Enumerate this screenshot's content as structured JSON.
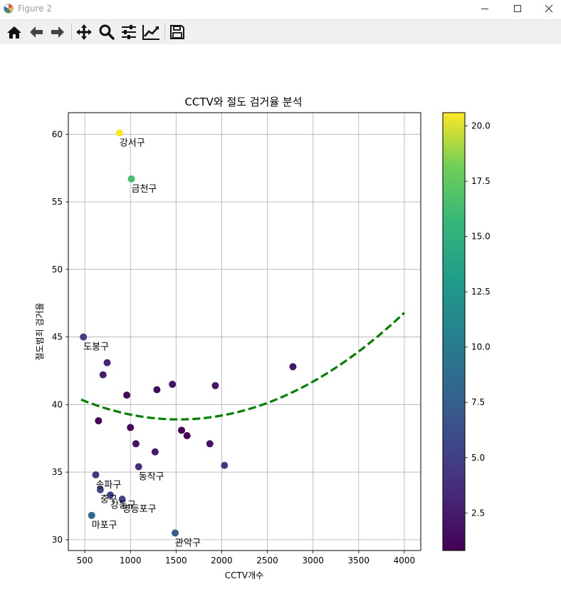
{
  "window": {
    "title": "Figure 2"
  },
  "toolbar": {
    "buttons": [
      "home-icon",
      "back-icon",
      "forward-icon",
      "pan-icon",
      "zoom-icon",
      "subplots-icon",
      "customize-icon",
      "save-icon"
    ]
  },
  "chart_data": {
    "type": "scatter",
    "title": "CCTV와 절도 검거율 분석",
    "xlabel": "CCTV개수",
    "ylabel": "절도범죄 검거율",
    "xlim": [
      320,
      4180
    ],
    "ylim": [
      29.2,
      61.6
    ],
    "xticks": [
      500,
      1000,
      1500,
      2000,
      2500,
      3000,
      3500,
      4000
    ],
    "yticks": [
      30,
      35,
      40,
      45,
      50,
      55,
      60
    ],
    "grid": true,
    "colormap": "viridis",
    "colorbar": {
      "min": 0.8,
      "max": 20.6,
      "ticks": [
        "2.5",
        "5.0",
        "7.5",
        "10.0",
        "12.5",
        "15.0",
        "17.5",
        "20.0"
      ]
    },
    "points": [
      {
        "x": 880,
        "y": 60.1,
        "c": 20.6,
        "label": "강서구"
      },
      {
        "x": 1010,
        "y": 56.7,
        "c": 16.6,
        "label": "금천구"
      },
      {
        "x": 485,
        "y": 45.0,
        "c": 5.0,
        "label": "도봉구"
      },
      {
        "x": 745,
        "y": 43.1,
        "c": 3.0,
        "label": ""
      },
      {
        "x": 700,
        "y": 42.2,
        "c": 2.5,
        "label": ""
      },
      {
        "x": 960,
        "y": 40.7,
        "c": 1.2,
        "label": ""
      },
      {
        "x": 650,
        "y": 38.8,
        "c": 1.0,
        "label": ""
      },
      {
        "x": 1000,
        "y": 38.3,
        "c": 1.2,
        "label": ""
      },
      {
        "x": 1290,
        "y": 41.1,
        "c": 1.5,
        "label": ""
      },
      {
        "x": 1460,
        "y": 41.5,
        "c": 2.0,
        "label": ""
      },
      {
        "x": 1930,
        "y": 41.4,
        "c": 2.2,
        "label": ""
      },
      {
        "x": 2780,
        "y": 42.8,
        "c": 2.2,
        "label": ""
      },
      {
        "x": 1560,
        "y": 38.1,
        "c": 0.9,
        "label": ""
      },
      {
        "x": 1620,
        "y": 37.7,
        "c": 1.0,
        "label": ""
      },
      {
        "x": 1060,
        "y": 37.1,
        "c": 1.8,
        "label": ""
      },
      {
        "x": 1870,
        "y": 37.1,
        "c": 1.8,
        "label": ""
      },
      {
        "x": 1270,
        "y": 36.5,
        "c": 2.3,
        "label": ""
      },
      {
        "x": 1090,
        "y": 35.4,
        "c": 3.8,
        "label": "동작구"
      },
      {
        "x": 2030,
        "y": 35.5,
        "c": 4.3,
        "label": ""
      },
      {
        "x": 620,
        "y": 34.8,
        "c": 4.5,
        "label": "송파구"
      },
      {
        "x": 670,
        "y": 33.7,
        "c": 5.8,
        "label": "중구"
      },
      {
        "x": 780,
        "y": 33.3,
        "c": 5.0,
        "label": "강동구"
      },
      {
        "x": 910,
        "y": 33.0,
        "c": 5.6,
        "label": "영등포구"
      },
      {
        "x": 575,
        "y": 31.8,
        "c": 8.2,
        "label": "마포구"
      },
      {
        "x": 1490,
        "y": 30.5,
        "c": 7.4,
        "label": "관악구"
      }
    ],
    "trend": {
      "type": "polynomial",
      "degree": 2,
      "color": "#008000",
      "x": [
        460,
        4000
      ],
      "points": [
        [
          460,
          40.37
        ],
        [
          1500,
          38.9
        ],
        [
          3000,
          41.7
        ],
        [
          4000,
          45.85
        ]
      ]
    }
  }
}
